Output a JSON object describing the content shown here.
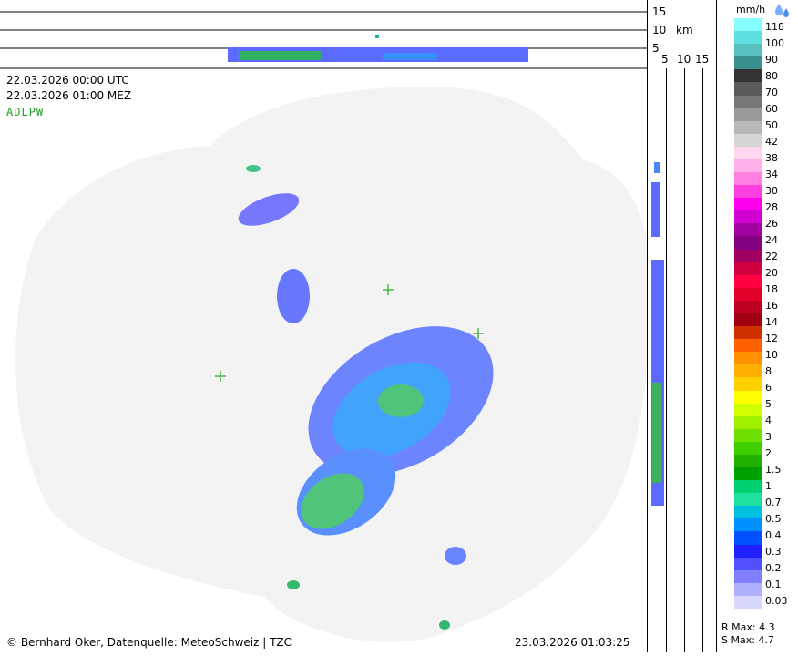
{
  "header": {
    "time_utc": "22.03.2026 00:00 UTC",
    "time_local": "22.03.2026 01:00 MEZ",
    "station_code": "ADLPW"
  },
  "top_profile": {
    "tick_labels": [
      "15",
      "10",
      "5"
    ],
    "unit_label": "km"
  },
  "side_profile": {
    "tick_labels": [
      "5",
      "10",
      "15"
    ]
  },
  "legend": {
    "unit": "mm/h",
    "icon": "rain-drops-icon",
    "labels": [
      "118",
      "100",
      "90",
      "80",
      "70",
      "60",
      "50",
      "42",
      "38",
      "34",
      "30",
      "28",
      "26",
      "24",
      "22",
      "20",
      "18",
      "16",
      "14",
      "12",
      "10",
      "8",
      "6",
      "5",
      "4",
      "3",
      "2",
      "1.5",
      "1",
      "0.7",
      "0.5",
      "0.4",
      "0.3",
      "0.2",
      "0.1",
      "0.03"
    ],
    "colors": [
      "#8ff",
      "#5fdfe0",
      "#5abfbf",
      "#3a8f8f",
      "#333",
      "#5a5a5a",
      "#777",
      "#9a9a9a",
      "#b8b8b8",
      "#d6d6d6",
      "#ffd8f0",
      "#ffb0e8",
      "#ff80e0",
      "#ff40e0",
      "#ff00ee",
      "#d000d0",
      "#a000a0",
      "#800080",
      "#a00060",
      "#d00040",
      "#ff0040",
      "#e0002a",
      "#c00020",
      "#a00010",
      "#d03000",
      "#ff6000",
      "#ff9000",
      "#ffb000",
      "#ffd000",
      "#ffff00",
      "#d0ff00",
      "#a0f000",
      "#70e000",
      "#40d000",
      "#20b000",
      "#00a000",
      "#00d070",
      "#20e0a0",
      "#00c0e0",
      "#0090ff",
      "#0050ff",
      "#2020ff",
      "#5050ff",
      "#8080ff",
      "#b0b0ff",
      "#d8d8ff"
    ]
  },
  "stats": {
    "r_max": "R Max: 4.3",
    "s_max": "S Max: 4.7"
  },
  "footer": {
    "credit": "© Bernhard Oker, Datenquelle: MeteoSchweiz | TZC",
    "generated": "23.03.2026 01:03:25"
  }
}
